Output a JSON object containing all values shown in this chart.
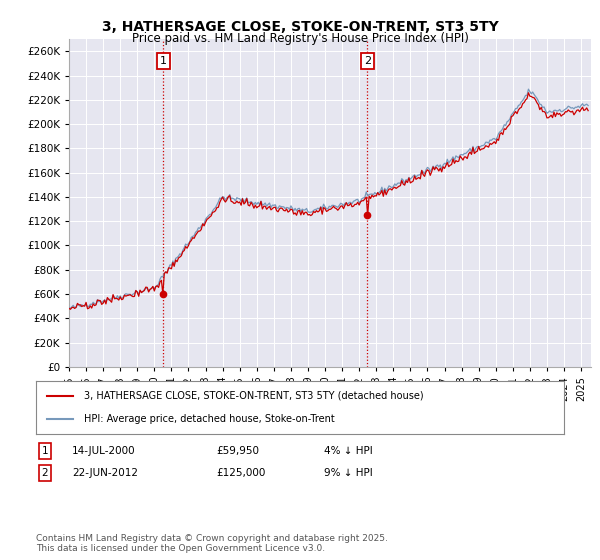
{
  "title": "3, HATHERSAGE CLOSE, STOKE-ON-TRENT, ST3 5TY",
  "subtitle": "Price paid vs. HM Land Registry's House Price Index (HPI)",
  "title_fontsize": 10,
  "subtitle_fontsize": 8.5,
  "ylim": [
    0,
    270000
  ],
  "yticks": [
    0,
    20000,
    40000,
    60000,
    80000,
    100000,
    120000,
    140000,
    160000,
    180000,
    200000,
    220000,
    240000,
    260000
  ],
  "ytick_labels": [
    "£0",
    "£20K",
    "£40K",
    "£60K",
    "£80K",
    "£100K",
    "£120K",
    "£140K",
    "£160K",
    "£180K",
    "£200K",
    "£220K",
    "£240K",
    "£260K"
  ],
  "background_color": "#ffffff",
  "plot_bg_color": "#e6e6f0",
  "grid_color": "#ffffff",
  "line1_color": "#cc0000",
  "line2_color": "#7799bb",
  "line1_label": "3, HATHERSAGE CLOSE, STOKE-ON-TRENT, ST3 5TY (detached house)",
  "line2_label": "HPI: Average price, detached house, Stoke-on-Trent",
  "vline_color": "#cc0000",
  "marker1_value": 59950,
  "marker1_label": "1",
  "marker1_date": "14-JUL-2000",
  "marker1_price": "£59,950",
  "marker1_note": "4% ↓ HPI",
  "marker2_value": 125000,
  "marker2_label": "2",
  "marker2_date": "22-JUN-2012",
  "marker2_price": "£125,000",
  "marker2_note": "9% ↓ HPI",
  "footer": "Contains HM Land Registry data © Crown copyright and database right 2025.\nThis data is licensed under the Open Government Licence v3.0.",
  "footer_fontsize": 6.5
}
